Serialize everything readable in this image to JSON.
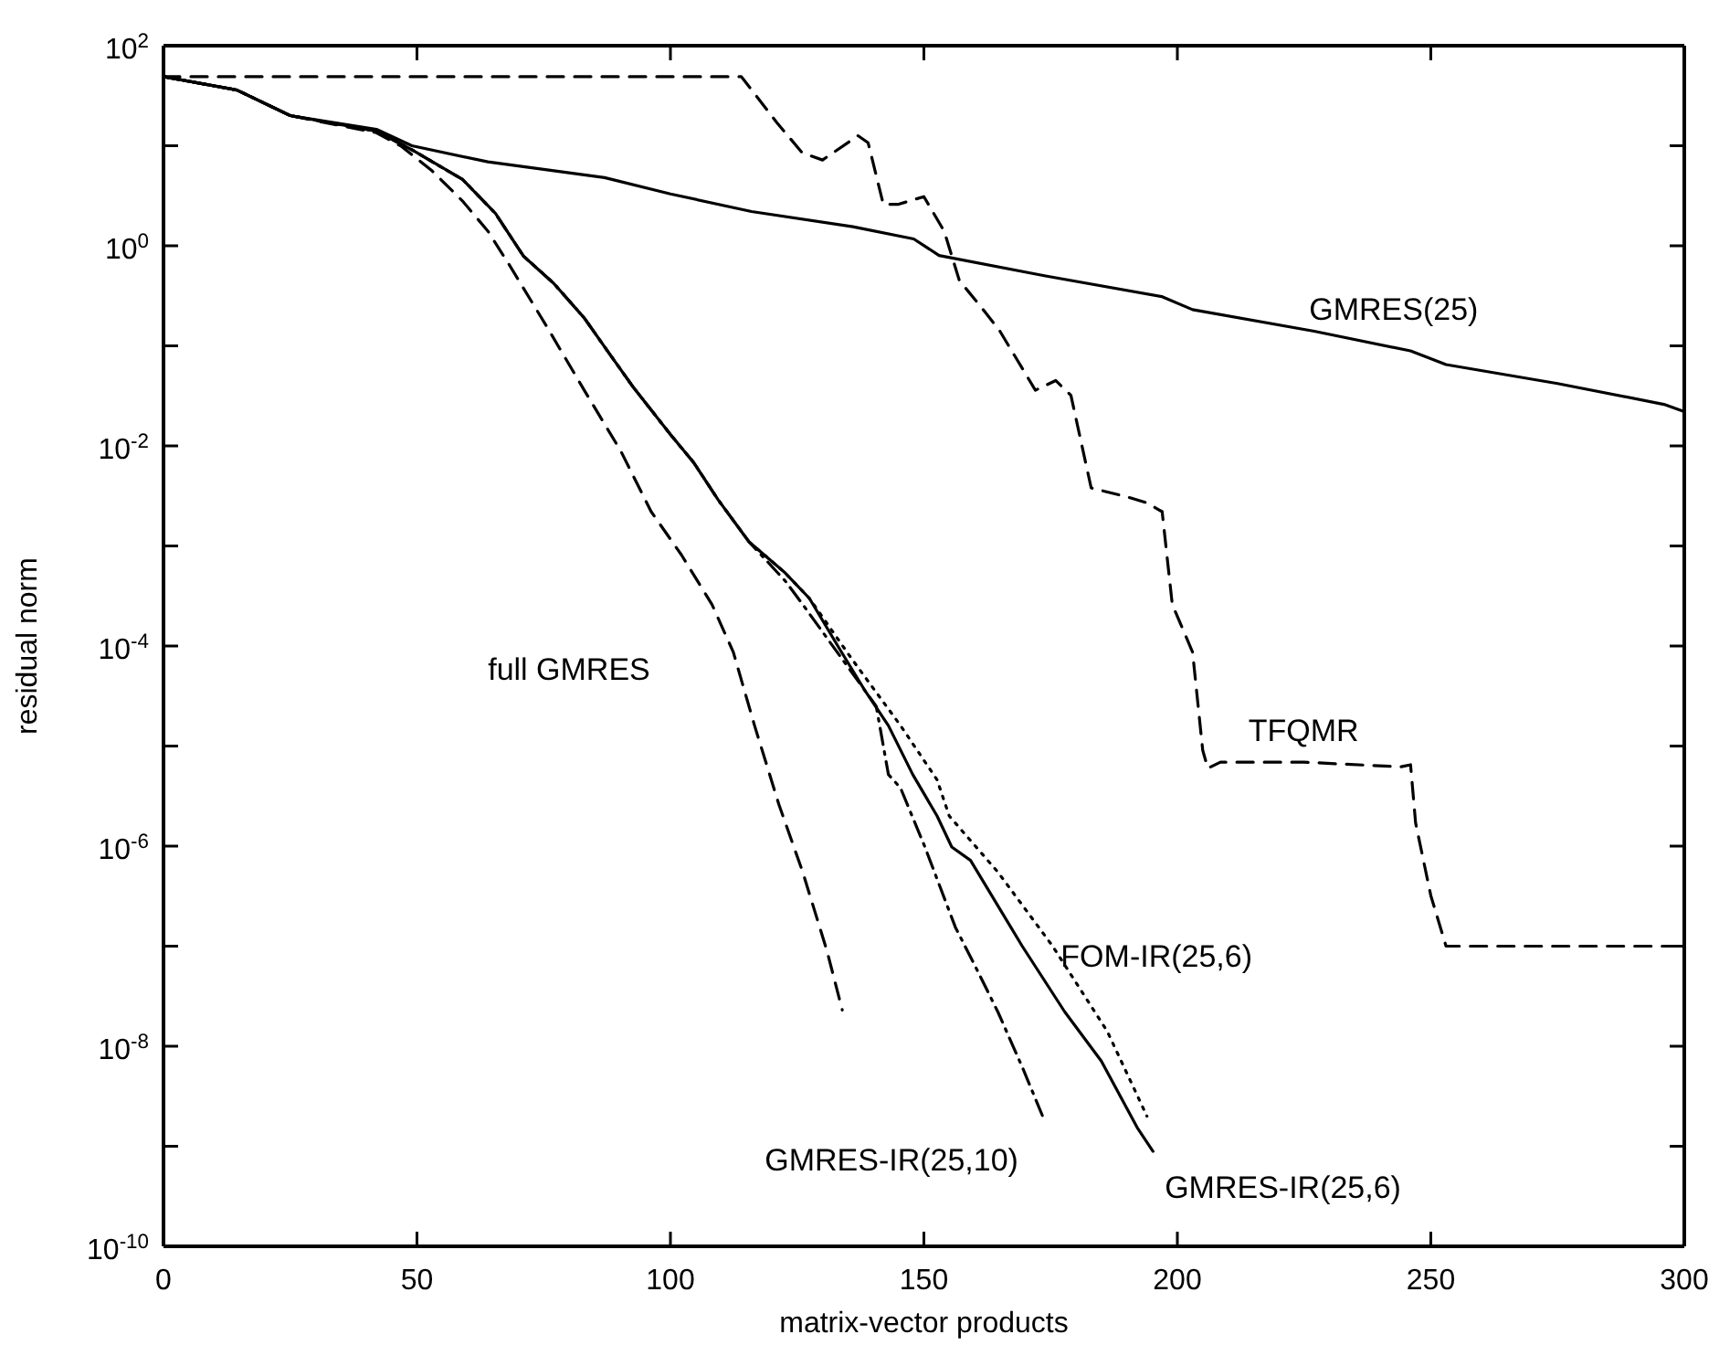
{
  "chart_data": {
    "type": "line",
    "xlabel": "matrix-vector products",
    "ylabel": "residual norm",
    "log": "y",
    "xlim": [
      0,
      300
    ],
    "xticks": [
      0,
      50,
      100,
      150,
      200,
      250,
      300
    ],
    "ylim": [
      1e-10,
      100
    ],
    "yticks": [
      {
        "value": 100,
        "label": "10$^{2}$"
      },
      {
        "value": 10,
        "label": null
      },
      {
        "value": 1,
        "label": "10$^{0}$"
      },
      {
        "value": 0.1,
        "label": null
      },
      {
        "value": 0.01,
        "label": "10$^{-2}$"
      },
      {
        "value": 0.001,
        "label": null
      },
      {
        "value": 0.0001,
        "label": "10$^{-4}$"
      },
      {
        "value": 1e-05,
        "label": null
      },
      {
        "value": 1e-06,
        "label": "10$^{-6}$"
      },
      {
        "value": 1e-07,
        "label": null
      },
      {
        "value": 1e-08,
        "label": "10$^{-8}$"
      },
      {
        "value": 1e-09,
        "label": null
      },
      {
        "value": 1e-10,
        "label": "10$^{-10}$"
      }
    ],
    "grid": false,
    "legend": false,
    "marker": "none",
    "series": [
      {
        "name": "GMRES(25)",
        "color": "#000000",
        "line_style": "solid",
        "x": [
          0,
          14.5,
          25,
          42,
          49,
          64,
          87,
          100,
          116,
          136,
          148,
          153,
          174,
          197,
          203,
          227,
          246,
          253,
          275,
          296,
          300
        ],
        "values": [
          49,
          36,
          20,
          14.6,
          10,
          6.9,
          4.8,
          3.3,
          2.2,
          1.55,
          1.17,
          0.8,
          0.5,
          0.31,
          0.23,
          0.14,
          0.089,
          0.065,
          0.042,
          0.026,
          0.022
        ]
      },
      {
        "name": "TFQMR",
        "color": "#000000",
        "line_style": "dashed",
        "x": [
          0,
          114,
          121,
          126,
          130,
          137,
          139,
          142,
          145,
          150,
          154,
          157,
          162,
          165,
          172,
          176,
          179,
          183,
          190,
          194,
          197,
          199,
          203,
          205,
          206,
          208.5,
          225,
          244,
          246,
          247,
          250,
          253,
          300
        ],
        "values": [
          49,
          49,
          17,
          8.5,
          7.2,
          12.6,
          10.7,
          2.6,
          2.6,
          3.1,
          1.4,
          0.45,
          0.22,
          0.14,
          0.036,
          0.045,
          0.032,
          0.0038,
          0.0031,
          0.0027,
          0.0022,
          0.00026,
          8.7e-05,
          9.1e-06,
          6e-06,
          6.9e-06,
          6.9e-06,
          6.2e-06,
          6.5e-06,
          1.7e-06,
          3.2e-07,
          1e-07,
          1e-07
        ]
      },
      {
        "name": "full GMRES",
        "color": "#000000",
        "line_style": "dashed",
        "x": [
          0,
          14.5,
          25,
          42,
          47,
          53,
          59,
          64,
          68.6,
          75.8,
          83,
          90.2,
          96.2,
          102.2,
          108.2,
          112.4,
          116.6,
          121.4,
          126.1,
          130.9,
          133.9
        ],
        "values": [
          49,
          36,
          20,
          13.5,
          9.8,
          5.6,
          2.8,
          1.4,
          0.6,
          0.15,
          0.036,
          0.0089,
          0.0022,
          0.00081,
          0.00026,
          8.7e-05,
          1.6e-05,
          2.6e-06,
          5.5e-07,
          8.9e-08,
          2.3e-08
        ]
      },
      {
        "name": "GMRES-IR(25,10)",
        "color": "#000000",
        "line_style": "dashdot",
        "x": [
          0,
          14.5,
          25,
          42,
          49,
          59,
          65.5,
          71,
          77,
          83,
          88,
          92.6,
          100,
          104.6,
          109.4,
          115.5,
          122.6,
          126.1,
          133.4,
          140.6,
          143,
          145.4,
          150.2,
          156.2,
          159.8,
          164.6,
          169.4,
          173.6
        ],
        "values": [
          49,
          36,
          20,
          14,
          9.1,
          4.6,
          2.1,
          0.79,
          0.42,
          0.19,
          0.083,
          0.039,
          0.013,
          0.0068,
          0.0029,
          0.0011,
          0.00045,
          0.00026,
          8e-05,
          2.5e-05,
          5.2e-06,
          3.8e-06,
          9.8e-07,
          1.55e-07,
          6.8e-08,
          2.2e-08,
          6.2e-09,
          1.9e-09
        ]
      },
      {
        "name": "GMRES-IR(25,6)",
        "color": "#000000",
        "line_style": "solid",
        "x": [
          0,
          14.5,
          25,
          42,
          49,
          59,
          65.5,
          71,
          77,
          83,
          88,
          92.6,
          100,
          104.6,
          109.4,
          115.5,
          122.6,
          127.4,
          133.4,
          138.2,
          143,
          147.8,
          152.6,
          155.5,
          159.2,
          169.4,
          177.8,
          185,
          192.2,
          195.2
        ],
        "values": [
          49,
          36,
          20,
          14,
          9.1,
          4.6,
          2.1,
          0.79,
          0.42,
          0.19,
          0.083,
          0.039,
          0.013,
          0.0068,
          0.0029,
          0.0011,
          0.00054,
          0.0003,
          9.3e-05,
          3.7e-05,
          1.6e-05,
          5.2e-06,
          2e-06,
          9.8e-07,
          7.2e-07,
          1e-07,
          2.2e-08,
          7.1e-09,
          1.5e-09,
          8.9e-10
        ]
      },
      {
        "name": "FOM-IR(25,6)",
        "color": "#000000",
        "line_style": "dotted",
        "x": [
          0,
          14.5,
          25,
          42,
          49,
          59,
          65.5,
          71,
          77,
          83,
          88,
          92.6,
          100,
          104.6,
          109.4,
          115.5,
          122.6,
          127.4,
          135.8,
          145.4,
          152.6,
          155,
          164.6,
          175.4,
          186.2,
          194
        ],
        "values": [
          49,
          36,
          20,
          14,
          9.1,
          4.6,
          2.1,
          0.79,
          0.42,
          0.19,
          0.083,
          0.039,
          0.013,
          0.0068,
          0.0029,
          0.0011,
          0.00054,
          0.0003,
          7.4e-05,
          1.6e-05,
          4.6e-06,
          2e-06,
          5.5e-07,
          1e-07,
          1.4e-08,
          2e-09
        ]
      }
    ]
  }
}
